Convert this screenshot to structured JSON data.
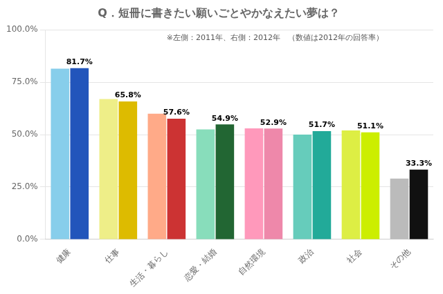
{
  "chart_data": {
    "type": "bar",
    "title": "Q．短冊に書きたい願いごとやかなえたい夢は？",
    "annotations": [
      "※左側：2011年、右側：2012年　（数値は2012年の回答率）"
    ],
    "categories": [
      "健康",
      "仕事",
      "生活・暮らし",
      "恋愛・結婚",
      "自然環境",
      "政治",
      "社会",
      "その他"
    ],
    "series": [
      {
        "values": [
          81.5,
          67.0,
          60.0,
          52.5,
          53.0,
          50.0,
          52.0,
          29.0
        ],
        "colors": [
          "#87CEEB",
          "#EEEE88",
          "#FFAA88",
          "#88DDBB",
          "#FF99BB",
          "#66CCBB",
          "#DDEE44",
          "#BBBBBB"
        ]
      },
      {
        "values": [
          81.7,
          65.8,
          57.6,
          54.9,
          52.9,
          51.7,
          51.1,
          33.3
        ],
        "value_labels": [
          "81.7%",
          "65.8%",
          "57.6%",
          "54.9%",
          "52.9%",
          "51.7%",
          "51.1%",
          "33.3%"
        ],
        "colors": [
          "#2255BB",
          "#DDBB00",
          "#CC3333",
          "#226633",
          "#EE88AA",
          "#22AA99",
          "#CCEE00",
          "#111111"
        ],
        "data_labels": true
      }
    ],
    "ylim": [
      0,
      100
    ],
    "yticks": [
      {
        "value": 0,
        "label": "0.0%"
      },
      {
        "value": 25,
        "label": "25.0%"
      },
      {
        "value": 50,
        "label": "50.0%"
      },
      {
        "value": 75,
        "label": "75.0%"
      },
      {
        "value": 100,
        "label": "100.0%"
      }
    ],
    "grid": true
  }
}
